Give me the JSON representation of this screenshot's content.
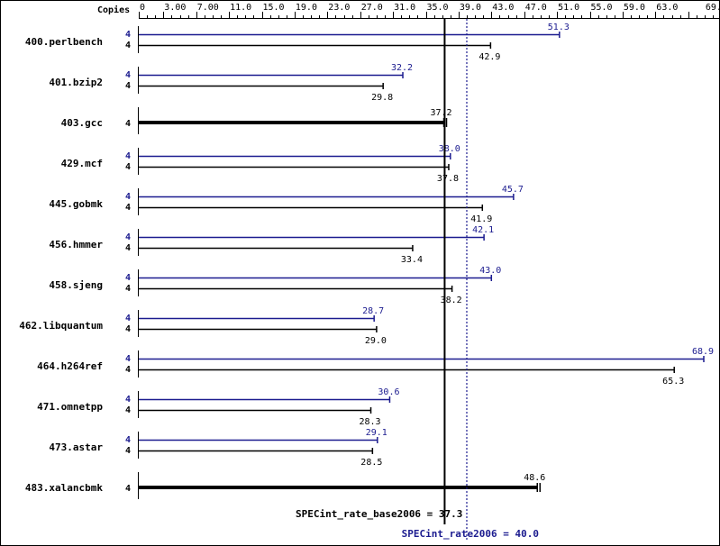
{
  "chart_data": {
    "type": "bar",
    "orientation": "horizontal",
    "axis_title": "Copies",
    "xlim": [
      0,
      70
    ],
    "ticks": [
      "0",
      "3.00",
      "7.00",
      "11.0",
      "15.0",
      "19.0",
      "23.0",
      "27.0",
      "31.0",
      "35.0",
      "39.0",
      "43.0",
      "47.0",
      "51.0",
      "55.0",
      "59.0",
      "63.0",
      "69.0"
    ],
    "tick_values": [
      0,
      3,
      7,
      11,
      15,
      19,
      23,
      27,
      31,
      35,
      39,
      43,
      47,
      51,
      55,
      59,
      63,
      69
    ],
    "colors": {
      "peak": "#1b1b8f",
      "base": "#000000"
    },
    "categories": [
      "400.perlbench",
      "401.bzip2",
      "403.gcc",
      "429.mcf",
      "445.gobmk",
      "456.hmmer",
      "458.sjeng",
      "462.libquantum",
      "464.h264ref",
      "471.omnetpp",
      "473.astar",
      "483.xalancbmk"
    ],
    "series": [
      {
        "name": "peak",
        "copies": [
          "4",
          "4",
          null,
          "4",
          "4",
          "4",
          "4",
          "4",
          "4",
          "4",
          "4",
          null
        ],
        "values": [
          51.3,
          32.2,
          null,
          38.0,
          45.7,
          42.1,
          43.0,
          28.7,
          68.9,
          30.6,
          29.1,
          null
        ],
        "labels": [
          "51.3",
          "32.2",
          null,
          "38.0",
          "45.7",
          "42.1",
          "43.0",
          "28.7",
          "68.9",
          "30.6",
          "29.1",
          null
        ]
      },
      {
        "name": "base",
        "copies": [
          "4",
          "4",
          "4",
          "4",
          "4",
          "4",
          "4",
          "4",
          "4",
          "4",
          "4",
          "4"
        ],
        "values": [
          42.9,
          29.8,
          37.2,
          37.8,
          41.9,
          33.4,
          38.2,
          29.0,
          65.3,
          28.3,
          28.5,
          48.6
        ],
        "labels": [
          "42.9",
          "29.8",
          "37.2",
          "37.8",
          "41.9",
          "33.4",
          "38.2",
          "29.0",
          "65.3",
          "28.3",
          "28.5",
          "48.6"
        ]
      }
    ],
    "reference_lines": [
      {
        "name": "base",
        "label": "SPECint_rate_base2006 = 37.3",
        "value": 37.3,
        "style": "solid"
      },
      {
        "name": "peak",
        "label": "SPECint_rate2006 = 40.0",
        "value": 40.0,
        "style": "dotted"
      }
    ]
  }
}
